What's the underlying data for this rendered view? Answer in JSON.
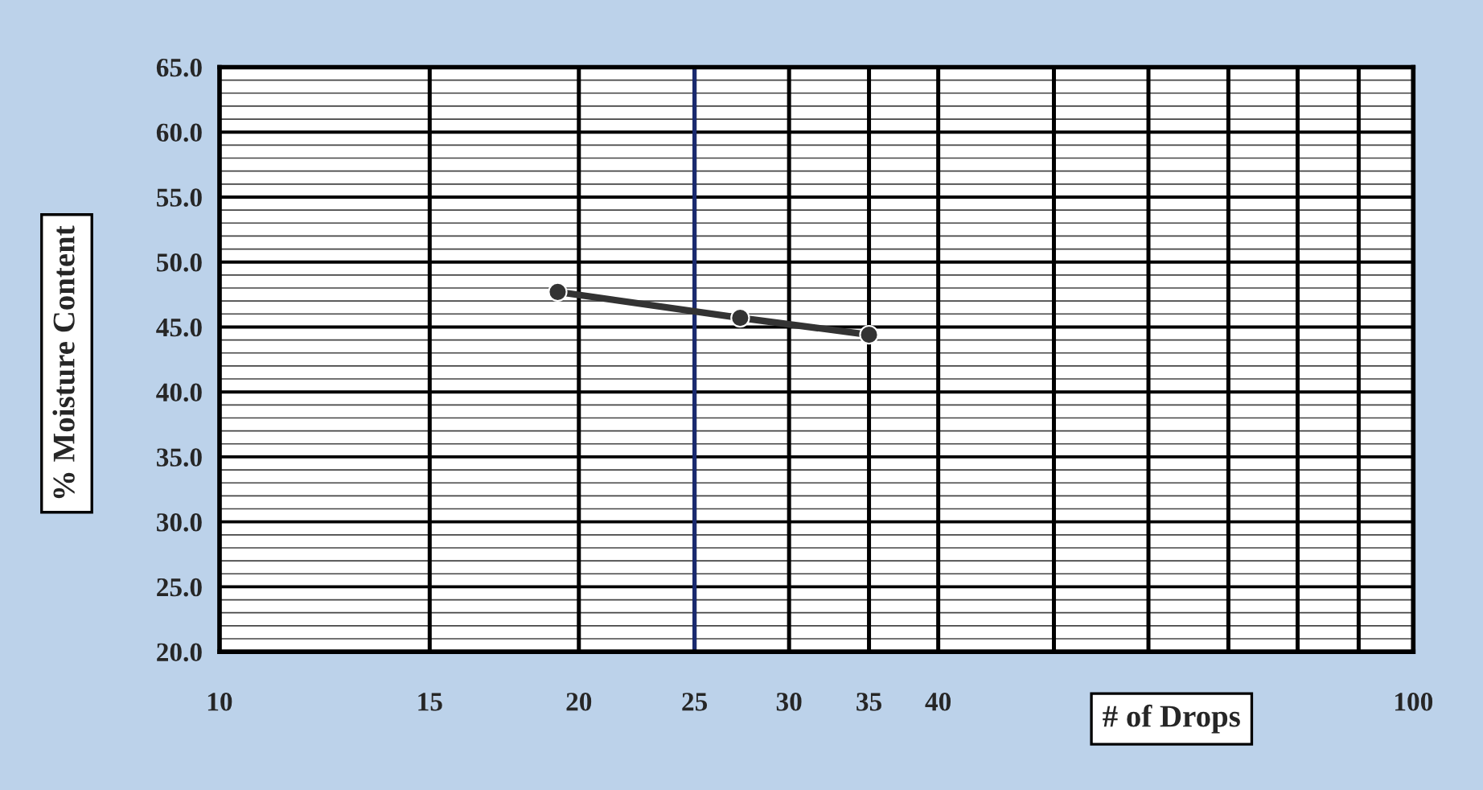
{
  "chart_data": {
    "type": "line",
    "xlabel": "# of Drops",
    "ylabel": "% Moisture Content",
    "x": [
      19.2,
      27.3,
      35
    ],
    "series": [
      {
        "color": "#333333",
        "values": [
          47.7,
          45.7,
          44.4
        ]
      }
    ],
    "marker": "circle",
    "line_style": "solid",
    "log": "x",
    "grid": true,
    "xlim": [
      10,
      100
    ],
    "ylim": [
      20,
      65
    ],
    "xticks": [
      10,
      15,
      20,
      25,
      30,
      35,
      40,
      {
        "value": 50,
        "label": null
      },
      {
        "value": 60,
        "label": null
      },
      {
        "value": 70,
        "label": null
      },
      {
        "value": 80,
        "label": null
      },
      {
        "value": 90,
        "label": null
      },
      100
    ],
    "yticks": [
      {
        "value": 20,
        "label": "20.0"
      },
      {
        "value": 25,
        "label": "25.0"
      },
      {
        "value": 30,
        "label": "30.0"
      },
      {
        "value": 35,
        "label": "35.0"
      },
      {
        "value": 40,
        "label": "40.0"
      },
      {
        "value": 45,
        "label": "45.0"
      },
      {
        "value": 50,
        "label": "50.0"
      },
      {
        "value": 55,
        "label": "55.0"
      },
      {
        "value": 60,
        "label": "60.0"
      },
      {
        "value": 65,
        "label": "65.0"
      }
    ],
    "ref_lines": [
      {
        "axis": "x",
        "value": 25,
        "label": null,
        "color": "#1a2a70"
      }
    ]
  }
}
